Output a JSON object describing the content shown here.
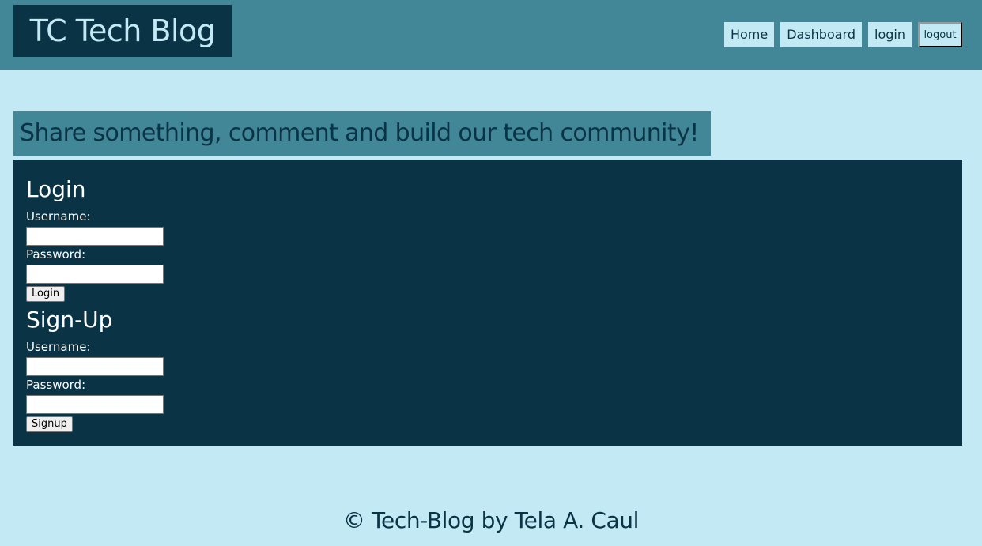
{
  "header": {
    "site_title": "TC Tech Blog",
    "nav": {
      "home": "Home",
      "dashboard": "Dashboard",
      "login": "login",
      "logout": "logout"
    }
  },
  "tagline": "Share something, comment and build our tech community!",
  "login_form": {
    "title": "Login",
    "username_label": "Username:",
    "username_value": "",
    "password_label": "Password:",
    "password_value": "",
    "submit_label": "Login"
  },
  "signup_form": {
    "title": "Sign-Up",
    "username_label": "Username:",
    "username_value": "",
    "password_label": "Password:",
    "password_value": "",
    "submit_label": "Signup"
  },
  "footer": {
    "text": "© Tech-Blog by Tela A. Caul"
  },
  "colors": {
    "page_background": "#c3eaf4",
    "header_background": "#418797",
    "dark_panel": "#0a3345",
    "panel_text": "#ffffff"
  }
}
